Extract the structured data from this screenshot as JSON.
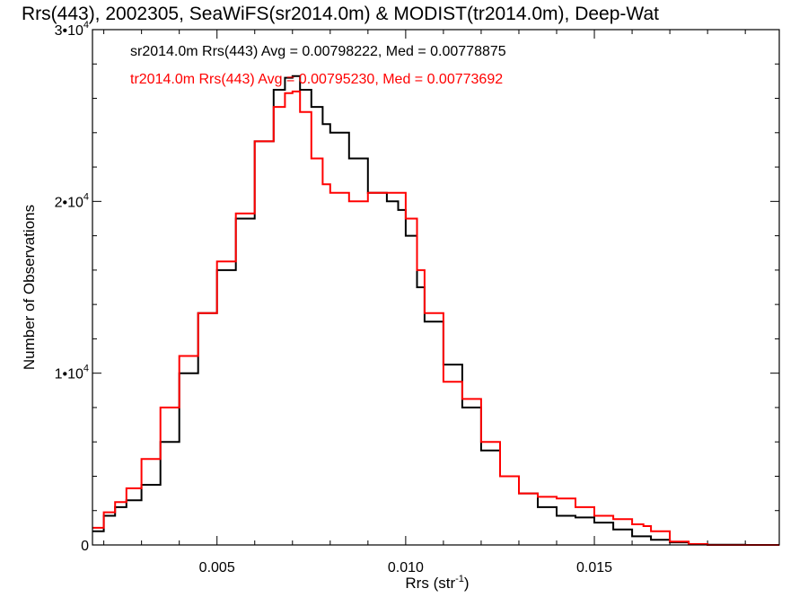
{
  "chart_data": {
    "type": "line",
    "title": "Rrs(443), 2002305, SeaWiFS(sr2014.0m) & MODIST(tr2014.0m), Deep-Wat",
    "xlabel": "Rrs (str",
    "xlabel_exp": "-1",
    "xlabel_suffix": ")",
    "ylabel": "Number of Observations",
    "xlim": [
      0.0017,
      0.0199
    ],
    "ylim": [
      0,
      30000
    ],
    "xticks": [
      {
        "value": 0.005,
        "label": "0.005"
      },
      {
        "value": 0.01,
        "label": "0.010"
      },
      {
        "value": 0.015,
        "label": "0.015"
      }
    ],
    "yticks": [
      {
        "value": 0,
        "base": "0",
        "exp": ""
      },
      {
        "value": 10000,
        "base": "1•10",
        "exp": "4"
      },
      {
        "value": 20000,
        "base": "2•10",
        "exp": "4"
      },
      {
        "value": 30000,
        "base": "3•10",
        "exp": "4"
      }
    ],
    "grid": false,
    "legend_position": "top-left",
    "series": [
      {
        "name": "sr2014.0m Rrs(443) Avg = 0.00798222, Med = 0.00778875",
        "color": "#000000",
        "x": [
          0.0017,
          0.002,
          0.0023,
          0.0026,
          0.003,
          0.0035,
          0.004,
          0.0045,
          0.005,
          0.0055,
          0.006,
          0.0065,
          0.0068,
          0.007,
          0.0072,
          0.0075,
          0.0078,
          0.008,
          0.0085,
          0.009,
          0.0095,
          0.0098,
          0.01,
          0.0103,
          0.0105,
          0.011,
          0.0115,
          0.012,
          0.0125,
          0.013,
          0.0135,
          0.014,
          0.0145,
          0.015,
          0.0155,
          0.016,
          0.0165,
          0.017,
          0.0175,
          0.018,
          0.019,
          0.0199
        ],
        "y": [
          800,
          1700,
          2200,
          2600,
          3500,
          6000,
          10000,
          13500,
          16000,
          19000,
          23500,
          26500,
          27200,
          27300,
          26500,
          25500,
          24500,
          24000,
          22500,
          20500,
          20000,
          19500,
          18000,
          15000,
          13000,
          10500,
          8000,
          5500,
          4000,
          3000,
          2200,
          1700,
          1600,
          1300,
          900,
          500,
          300,
          150,
          50,
          10,
          0,
          0
        ]
      },
      {
        "name": "tr2014.0m Rrs(443) Avg = 0.00795230, Med = 0.00773692",
        "color": "#ff0000",
        "x": [
          0.0017,
          0.002,
          0.0023,
          0.0026,
          0.003,
          0.0035,
          0.004,
          0.0045,
          0.005,
          0.0055,
          0.006,
          0.0065,
          0.0068,
          0.007,
          0.0072,
          0.0075,
          0.0078,
          0.008,
          0.0085,
          0.009,
          0.0095,
          0.0098,
          0.01,
          0.0103,
          0.0105,
          0.011,
          0.0115,
          0.012,
          0.0125,
          0.013,
          0.0135,
          0.014,
          0.0145,
          0.015,
          0.0155,
          0.016,
          0.0163,
          0.0165,
          0.017,
          0.0175,
          0.018,
          0.019,
          0.0199
        ],
        "y": [
          1000,
          1900,
          2500,
          3300,
          5000,
          8000,
          11000,
          13500,
          16500,
          19300,
          23500,
          25500,
          26300,
          26400,
          25200,
          22500,
          21000,
          20500,
          20000,
          20500,
          20500,
          20500,
          19000,
          16000,
          13500,
          9500,
          8500,
          6000,
          4000,
          3000,
          2800,
          2700,
          2200,
          1700,
          1500,
          1200,
          1100,
          800,
          200,
          50,
          0,
          0,
          0
        ]
      }
    ]
  }
}
